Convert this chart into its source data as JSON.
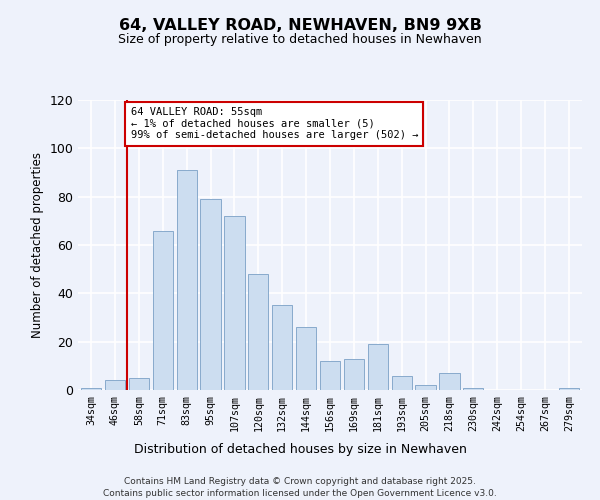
{
  "title": "64, VALLEY ROAD, NEWHAVEN, BN9 9XB",
  "subtitle": "Size of property relative to detached houses in Newhaven",
  "xlabel": "Distribution of detached houses by size in Newhaven",
  "ylabel": "Number of detached properties",
  "bar_labels": [
    "34sqm",
    "46sqm",
    "58sqm",
    "71sqm",
    "83sqm",
    "95sqm",
    "107sqm",
    "120sqm",
    "132sqm",
    "144sqm",
    "156sqm",
    "169sqm",
    "181sqm",
    "193sqm",
    "205sqm",
    "218sqm",
    "230sqm",
    "242sqm",
    "254sqm",
    "267sqm",
    "279sqm"
  ],
  "bar_values": [
    1,
    4,
    5,
    66,
    91,
    79,
    72,
    48,
    35,
    26,
    12,
    13,
    19,
    6,
    2,
    7,
    1,
    0,
    0,
    0,
    1
  ],
  "bar_color": "#ccddf0",
  "bar_edge_color": "#88aacc",
  "background_color": "#eef2fb",
  "grid_color": "#ffffff",
  "vline_x_index": 1.5,
  "vline_color": "#cc0000",
  "annotation_text": "64 VALLEY ROAD: 55sqm\n← 1% of detached houses are smaller (5)\n99% of semi-detached houses are larger (502) →",
  "annotation_box_facecolor": "#ffffff",
  "annotation_box_edgecolor": "#cc0000",
  "ylim": [
    0,
    120
  ],
  "yticks": [
    0,
    20,
    40,
    60,
    80,
    100,
    120
  ],
  "footer_line1": "Contains HM Land Registry data © Crown copyright and database right 2025.",
  "footer_line2": "Contains public sector information licensed under the Open Government Licence v3.0."
}
